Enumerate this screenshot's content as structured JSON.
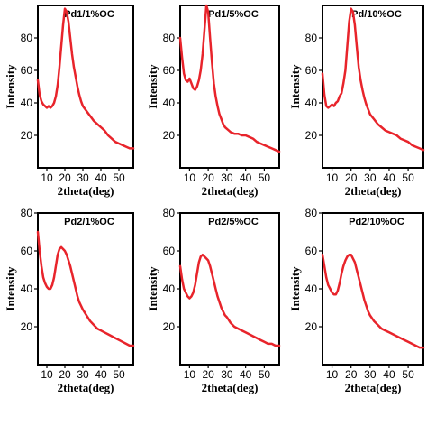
{
  "figure": {
    "line_color": "#e8242b"
  },
  "chart_data": [
    {
      "type": "line",
      "title": "Pd1/1%OC",
      "xlabel": "2theta(deg)",
      "ylabel": "Intensity",
      "xlim": [
        5,
        58
      ],
      "ylim": [
        0,
        100
      ],
      "xticks": [
        10,
        20,
        30,
        40,
        50
      ],
      "yticks": [
        20,
        40,
        60,
        80
      ],
      "series": [
        {
          "x": [
            5,
            6,
            7,
            8,
            9,
            10,
            11,
            12,
            13,
            14,
            15,
            16,
            17,
            18,
            19,
            20,
            21,
            22,
            23,
            24,
            25,
            26,
            27,
            28,
            29,
            30,
            32,
            34,
            36,
            38,
            40,
            42,
            44,
            46,
            48,
            50,
            52,
            54,
            56,
            58
          ],
          "y": [
            54,
            45,
            41,
            39,
            38,
            37,
            38,
            37,
            38,
            40,
            44,
            51,
            62,
            75,
            88,
            98,
            96,
            90,
            80,
            70,
            62,
            56,
            50,
            45,
            41,
            38,
            35,
            32,
            29,
            27,
            25,
            23,
            20,
            18,
            16,
            15,
            14,
            13,
            12,
            12
          ]
        }
      ]
    },
    {
      "type": "line",
      "title": "Pd1/5%OC",
      "xlabel": "2theta(deg)",
      "ylabel": "Intensity",
      "xlim": [
        5,
        58
      ],
      "ylim": [
        0,
        100
      ],
      "xticks": [
        10,
        20,
        30,
        40,
        50
      ],
      "yticks": [
        20,
        40,
        60,
        80
      ],
      "series": [
        {
          "x": [
            5,
            6,
            7,
            8,
            9,
            10,
            11,
            12,
            13,
            14,
            15,
            16,
            17,
            18,
            19,
            20,
            21,
            22,
            23,
            24,
            25,
            26,
            27,
            28,
            29,
            30,
            32,
            34,
            36,
            38,
            40,
            42,
            44,
            46,
            48,
            50,
            52,
            54,
            56,
            58
          ],
          "y": [
            80,
            68,
            58,
            54,
            53,
            55,
            52,
            49,
            48,
            50,
            54,
            60,
            70,
            85,
            100,
            96,
            80,
            65,
            52,
            44,
            38,
            33,
            30,
            27,
            25,
            24,
            22,
            21,
            21,
            20,
            20,
            19,
            18,
            16,
            15,
            14,
            13,
            12,
            11,
            10
          ]
        }
      ]
    },
    {
      "type": "line",
      "title": "Pd/10%OC",
      "xlabel": "2theta(deg)",
      "ylabel": "Intensity",
      "xlim": [
        5,
        58
      ],
      "ylim": [
        0,
        100
      ],
      "xticks": [
        10,
        20,
        30,
        40,
        50
      ],
      "yticks": [
        20,
        40,
        60,
        80
      ],
      "series": [
        {
          "x": [
            5,
            6,
            7,
            8,
            9,
            10,
            11,
            12,
            13,
            14,
            15,
            16,
            17,
            18,
            19,
            20,
            21,
            22,
            23,
            24,
            25,
            26,
            27,
            28,
            29,
            30,
            32,
            34,
            36,
            38,
            40,
            42,
            44,
            46,
            48,
            50,
            52,
            54,
            56,
            58
          ],
          "y": [
            58,
            45,
            38,
            37,
            38,
            39,
            38,
            40,
            41,
            44,
            46,
            52,
            60,
            75,
            90,
            98,
            96,
            88,
            75,
            62,
            54,
            48,
            43,
            39,
            36,
            33,
            30,
            27,
            25,
            23,
            22,
            21,
            20,
            18,
            17,
            16,
            14,
            13,
            12,
            11
          ]
        }
      ]
    },
    {
      "type": "line",
      "title": "Pd2/1%OC",
      "xlabel": "2theta(deg)",
      "ylabel": "Intensity",
      "xlim": [
        5,
        58
      ],
      "ylim": [
        0,
        80
      ],
      "xticks": [
        10,
        20,
        30,
        40,
        50
      ],
      "yticks": [
        20,
        40,
        60,
        80
      ],
      "series": [
        {
          "x": [
            5,
            6,
            7,
            8,
            9,
            10,
            11,
            12,
            13,
            14,
            15,
            16,
            17,
            18,
            19,
            20,
            21,
            22,
            23,
            24,
            25,
            26,
            27,
            28,
            29,
            30,
            32,
            34,
            36,
            38,
            40,
            42,
            44,
            46,
            48,
            50,
            52,
            54,
            56,
            58
          ],
          "y": [
            70,
            60,
            52,
            46,
            43,
            41,
            40,
            40,
            42,
            46,
            52,
            58,
            61,
            62,
            61,
            60,
            58,
            55,
            52,
            48,
            44,
            40,
            36,
            33,
            31,
            29,
            26,
            23,
            21,
            19,
            18,
            17,
            16,
            15,
            14,
            13,
            12,
            11,
            10,
            10
          ]
        }
      ]
    },
    {
      "type": "line",
      "title": "Pd2/5%OC",
      "xlabel": "2theta(deg)",
      "ylabel": "Intensity",
      "xlim": [
        5,
        58
      ],
      "ylim": [
        0,
        80
      ],
      "xticks": [
        10,
        20,
        30,
        40,
        50
      ],
      "yticks": [
        20,
        40,
        60,
        80
      ],
      "series": [
        {
          "x": [
            5,
            6,
            7,
            8,
            9,
            10,
            11,
            12,
            13,
            14,
            15,
            16,
            17,
            18,
            19,
            20,
            21,
            22,
            23,
            24,
            25,
            26,
            27,
            28,
            29,
            30,
            32,
            34,
            36,
            38,
            40,
            42,
            44,
            46,
            48,
            50,
            52,
            54,
            56,
            58
          ],
          "y": [
            52,
            45,
            40,
            38,
            36,
            35,
            36,
            38,
            42,
            48,
            54,
            57,
            58,
            57,
            56,
            55,
            52,
            48,
            44,
            40,
            36,
            33,
            30,
            28,
            26,
            25,
            22,
            20,
            19,
            18,
            17,
            16,
            15,
            14,
            13,
            12,
            11,
            11,
            10,
            10
          ]
        }
      ]
    },
    {
      "type": "line",
      "title": "Pd2/10%OC",
      "xlabel": "2theta(deg)",
      "ylabel": "Intensity",
      "xlim": [
        5,
        58
      ],
      "ylim": [
        0,
        80
      ],
      "xticks": [
        10,
        20,
        30,
        40,
        50
      ],
      "yticks": [
        20,
        40,
        60,
        80
      ],
      "series": [
        {
          "x": [
            5,
            6,
            7,
            8,
            9,
            10,
            11,
            12,
            13,
            14,
            15,
            16,
            17,
            18,
            19,
            20,
            21,
            22,
            23,
            24,
            25,
            26,
            27,
            28,
            29,
            30,
            32,
            34,
            36,
            38,
            40,
            42,
            44,
            46,
            48,
            50,
            52,
            54,
            56,
            58
          ],
          "y": [
            58,
            52,
            46,
            42,
            40,
            38,
            37,
            37,
            39,
            43,
            48,
            52,
            55,
            57,
            58,
            58,
            56,
            54,
            50,
            46,
            42,
            38,
            34,
            31,
            28,
            26,
            23,
            21,
            19,
            18,
            17,
            16,
            15,
            14,
            13,
            12,
            11,
            10,
            9,
            9
          ]
        }
      ]
    }
  ]
}
